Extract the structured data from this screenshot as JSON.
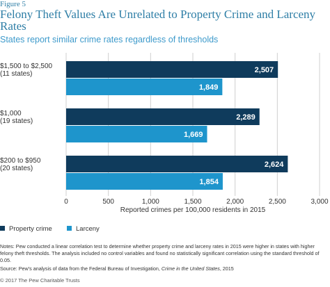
{
  "figure_label": "Figure 5",
  "title": "Felony Theft Values Are Unrelated to Property Crime and Larceny Rates",
  "subtitle": "States report similar crime rates regardless of thresholds",
  "legend": [
    {
      "name": "Property crime",
      "color": "#0f3b5c"
    },
    {
      "name": "Larceny",
      "color": "#1e95cc"
    }
  ],
  "notes": "Notes: Pew conducted a linear correlation test to determine whether property crime and larceny rates in 2015 were higher in states with higher felony theft thresholds. The analysis included no control variables and found no statistically significant correlation using the standard threshold of 0.05.",
  "source_prefix": "Source: Pew's analysis of data from the Federal Bureau of Investigation, ",
  "source_title": "Crime in the United States",
  "source_suffix": ", 2015",
  "copyright": "© 2017 The Pew Charitable Trusts",
  "chart_data": {
    "type": "bar",
    "orientation": "horizontal",
    "categories": [
      {
        "line1": "$1,500 to $2,500",
        "line2": "(11 states)"
      },
      {
        "line1": "$1,000",
        "line2": "(19 states)"
      },
      {
        "line1": "$200 to $950",
        "line2": "(20 states)"
      }
    ],
    "series": [
      {
        "name": "Property crime",
        "color": "#0f3b5c",
        "values": [
          2507,
          2289,
          2624
        ],
        "labels": [
          "2,507",
          "2,289",
          "2,624"
        ]
      },
      {
        "name": "Larceny",
        "color": "#1e95cc",
        "values": [
          1849,
          1669,
          1854
        ],
        "labels": [
          "1,849",
          "1,669",
          "1,854"
        ]
      }
    ],
    "xlabel": "Reported crimes per 100,000 residents in 2015",
    "xlim": [
      0,
      3000
    ],
    "xticks": [
      0,
      500,
      1000,
      1500,
      2000,
      2500,
      3000
    ],
    "xtick_labels": [
      "0",
      "500",
      "1,000",
      "1,500",
      "2,000",
      "2,500",
      "3,000"
    ],
    "grid": true,
    "legend_position": "bottom-left"
  }
}
